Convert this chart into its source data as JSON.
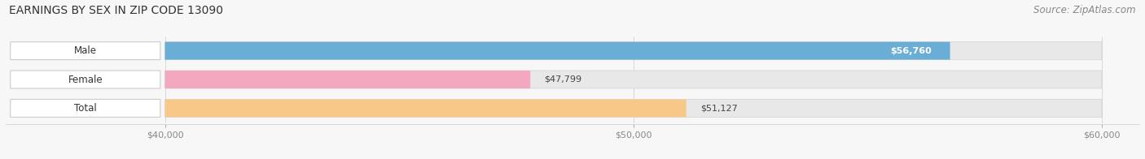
{
  "title": "EARNINGS BY SEX IN ZIP CODE 13090",
  "source": "Source: ZipAtlas.com",
  "categories": [
    "Male",
    "Female",
    "Total"
  ],
  "values": [
    56760,
    47799,
    51127
  ],
  "bar_colors": [
    "#6aaed6",
    "#f4a8c0",
    "#f8c888"
  ],
  "bg_bar_color": "#e8e8e8",
  "pill_color": "#ffffff",
  "pill_edge_color": "#cccccc",
  "xmin": 40000,
  "xmax": 60000,
  "xticks": [
    40000,
    50000,
    60000
  ],
  "xtick_labels": [
    "$40,000",
    "$50,000",
    "$60,000"
  ],
  "background_color": "#f7f7f7",
  "title_fontsize": 10,
  "source_fontsize": 8.5,
  "bar_height": 0.62,
  "figsize": [
    14.06,
    1.96
  ],
  "dpi": 100,
  "value_label_male_color": "#ffffff",
  "value_label_female_color": "#555555",
  "value_label_total_color": "#555555"
}
